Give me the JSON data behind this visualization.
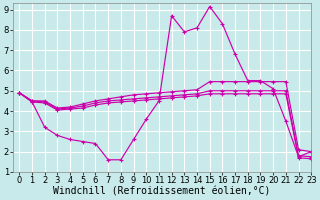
{
  "title": "",
  "xlabel": "Windchill (Refroidissement éolien,°C)",
  "ylabel": "",
  "background_color": "#c8eaea",
  "grid_color": "#ffffff",
  "line_color": "#cc00aa",
  "marker": "+",
  "xlim": [
    -0.5,
    23
  ],
  "ylim": [
    1,
    9.3
  ],
  "xticks": [
    0,
    1,
    2,
    3,
    4,
    5,
    6,
    7,
    8,
    9,
    10,
    11,
    12,
    13,
    14,
    15,
    16,
    17,
    18,
    19,
    20,
    21,
    22,
    23
  ],
  "yticks": [
    1,
    2,
    3,
    4,
    5,
    6,
    7,
    8,
    9
  ],
  "line1_x": [
    0,
    1,
    2,
    3,
    4,
    5,
    6,
    7,
    8,
    9,
    10,
    11,
    12,
    13,
    14,
    15,
    16,
    17,
    18,
    19,
    20,
    21,
    22,
    23
  ],
  "line1_y": [
    4.9,
    4.5,
    4.5,
    4.15,
    4.2,
    4.35,
    4.5,
    4.6,
    4.7,
    4.8,
    4.85,
    4.9,
    4.95,
    5.0,
    5.05,
    5.45,
    5.45,
    5.45,
    5.45,
    5.45,
    5.45,
    5.45,
    2.1,
    2.0
  ],
  "line2_x": [
    0,
    1,
    2,
    3,
    4,
    5,
    6,
    7,
    8,
    9,
    10,
    11,
    12,
    13,
    14,
    15,
    16,
    17,
    18,
    19,
    20,
    21,
    22,
    23
  ],
  "line2_y": [
    4.9,
    4.5,
    4.45,
    4.1,
    4.15,
    4.25,
    4.4,
    4.5,
    4.55,
    4.6,
    4.65,
    4.7,
    4.75,
    4.8,
    4.85,
    5.0,
    5.0,
    5.0,
    5.0,
    5.0,
    5.0,
    5.0,
    1.8,
    1.75
  ],
  "line3_x": [
    0,
    1,
    2,
    3,
    4,
    5,
    6,
    7,
    8,
    9,
    10,
    11,
    12,
    13,
    14,
    15,
    16,
    17,
    18,
    19,
    20,
    21,
    22,
    23
  ],
  "line3_y": [
    4.9,
    4.45,
    4.4,
    4.05,
    4.1,
    4.15,
    4.3,
    4.4,
    4.45,
    4.5,
    4.55,
    4.6,
    4.65,
    4.7,
    4.75,
    4.85,
    4.85,
    4.85,
    4.85,
    4.85,
    4.85,
    4.85,
    1.7,
    1.65
  ],
  "line4_x": [
    0,
    1,
    2,
    3,
    4,
    5,
    6,
    7,
    8,
    9,
    10,
    11,
    12,
    13,
    14,
    15,
    16,
    17,
    18,
    19,
    20,
    21,
    22,
    23
  ],
  "line4_y": [
    4.9,
    4.45,
    3.2,
    2.8,
    2.6,
    2.5,
    2.4,
    1.6,
    1.6,
    2.6,
    3.6,
    4.5,
    8.7,
    7.9,
    8.1,
    9.15,
    8.3,
    6.8,
    5.5,
    5.5,
    5.1,
    3.5,
    1.75,
    2.0
  ],
  "tick_fontsize": 6,
  "xlabel_fontsize": 7
}
